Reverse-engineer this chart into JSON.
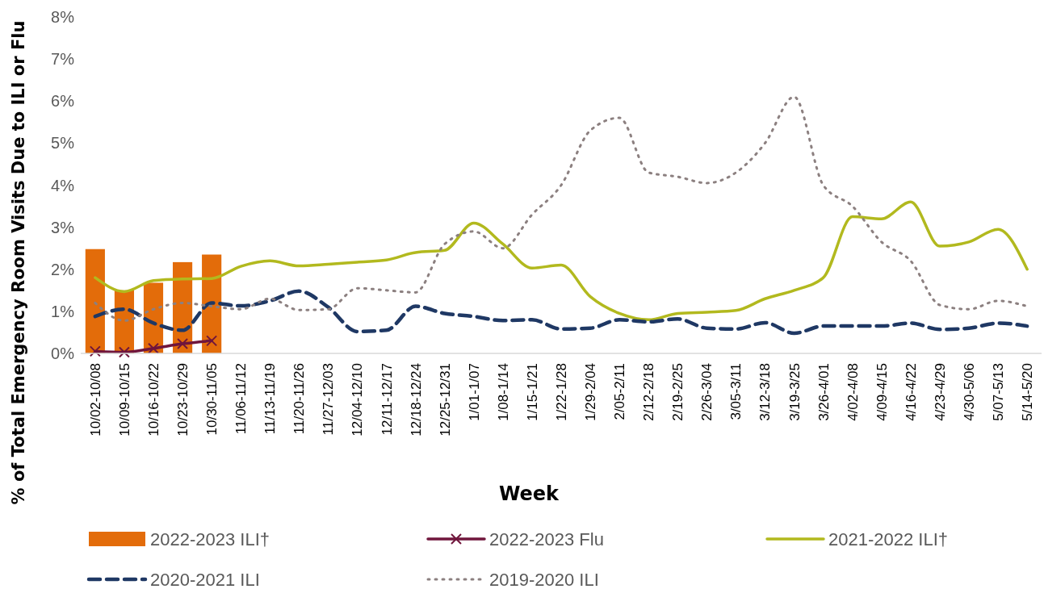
{
  "chart_data": {
    "type": "line",
    "xlabel": "Week",
    "ylabel": "% of Total Emergency Room Visits Due to ILI or Flu",
    "categories": [
      "10/02-10/08",
      "10/09-10/15",
      "10/16-10/22",
      "10/23-10/29",
      "10/30-11/05",
      "11/06-11/12",
      "11/13-11/19",
      "11/20-11/26",
      "11/27-12/03",
      "12/04-12/10",
      "12/11-12/17",
      "12/18-12/24",
      "12/25-12/31",
      "1/01-1/07",
      "1/08-1/14",
      "1/15-1/21",
      "1/22-1/28",
      "1/29-2/04",
      "2/05-2/11",
      "2/12-2/18",
      "2/19-2/25",
      "2/26-3/04",
      "3/05-3/11",
      "3/12-3/18",
      "3/19-3/25",
      "3/26-4/01",
      "4/02-4/08",
      "4/09-4/15",
      "4/16-4/22",
      "4/23-4/29",
      "4/30-5/06",
      "5/07-5/13",
      "5/14-5/20"
    ],
    "series": [
      {
        "name": "2022-2023 ILI†",
        "type": "bar",
        "color": "#e36c0a",
        "values": [
          2.48,
          1.5,
          1.68,
          2.17,
          2.35,
          null,
          null,
          null,
          null,
          null,
          null,
          null,
          null,
          null,
          null,
          null,
          null,
          null,
          null,
          null,
          null,
          null,
          null,
          null,
          null,
          null,
          null,
          null,
          null,
          null,
          null,
          null,
          null
        ]
      },
      {
        "name": "2022-2023 Flu",
        "color": "#70163c",
        "marker": "cross",
        "line_style": "solid",
        "values": [
          0.05,
          0.03,
          0.12,
          0.23,
          0.3,
          null,
          null,
          null,
          null,
          null,
          null,
          null,
          null,
          null,
          null,
          null,
          null,
          null,
          null,
          null,
          null,
          null,
          null,
          null,
          null,
          null,
          null,
          null,
          null,
          null,
          null,
          null,
          null
        ]
      },
      {
        "name": "2021-2022 ILI†",
        "color": "#b2b91e",
        "line_style": "solid",
        "values": [
          1.8,
          1.47,
          1.73,
          1.77,
          1.78,
          2.07,
          2.2,
          2.08,
          2.12,
          2.17,
          2.22,
          2.4,
          2.45,
          3.1,
          2.6,
          2.03,
          2.1,
          1.35,
          0.95,
          0.8,
          0.95,
          0.98,
          1.02,
          1.3,
          1.5,
          1.8,
          3.25,
          3.2,
          3.6,
          2.55,
          2.65,
          2.95,
          2.0
        ]
      },
      {
        "name": "2020-2021 ILI",
        "color": "#1f3864",
        "line_style": "dashed",
        "values": [
          0.88,
          1.05,
          0.72,
          0.55,
          1.2,
          1.13,
          1.25,
          1.48,
          1.1,
          0.52,
          0.55,
          1.12,
          0.95,
          0.88,
          0.78,
          0.8,
          0.58,
          0.6,
          0.8,
          0.75,
          0.82,
          0.6,
          0.58,
          0.73,
          0.48,
          0.65,
          0.65,
          0.65,
          0.72,
          0.57,
          0.6,
          0.72,
          0.65
        ]
      },
      {
        "name": "2019-2020 ILI",
        "color": "#8c8080",
        "line_style": "dotted",
        "values": [
          1.2,
          0.78,
          1.05,
          1.2,
          1.12,
          1.05,
          1.3,
          1.03,
          1.05,
          1.55,
          1.5,
          1.45,
          2.6,
          2.9,
          2.5,
          3.3,
          4.0,
          5.3,
          5.6,
          4.3,
          4.2,
          4.05,
          4.3,
          5.0,
          6.1,
          4.0,
          3.5,
          2.65,
          2.2,
          1.15,
          1.05,
          1.25,
          1.12
        ]
      }
    ],
    "ylim": [
      0,
      8
    ],
    "yticks": [
      {
        "value": 0,
        "label": "0%"
      },
      {
        "value": 1,
        "label": "1%"
      },
      {
        "value": 2,
        "label": "2%"
      },
      {
        "value": 3,
        "label": "3%"
      },
      {
        "value": 4,
        "label": "4%"
      },
      {
        "value": 5,
        "label": "5%"
      },
      {
        "value": 6,
        "label": "6%"
      },
      {
        "value": 7,
        "label": "7%"
      },
      {
        "value": 8,
        "label": "8%"
      }
    ],
    "grid": false,
    "legend": "bottom"
  }
}
